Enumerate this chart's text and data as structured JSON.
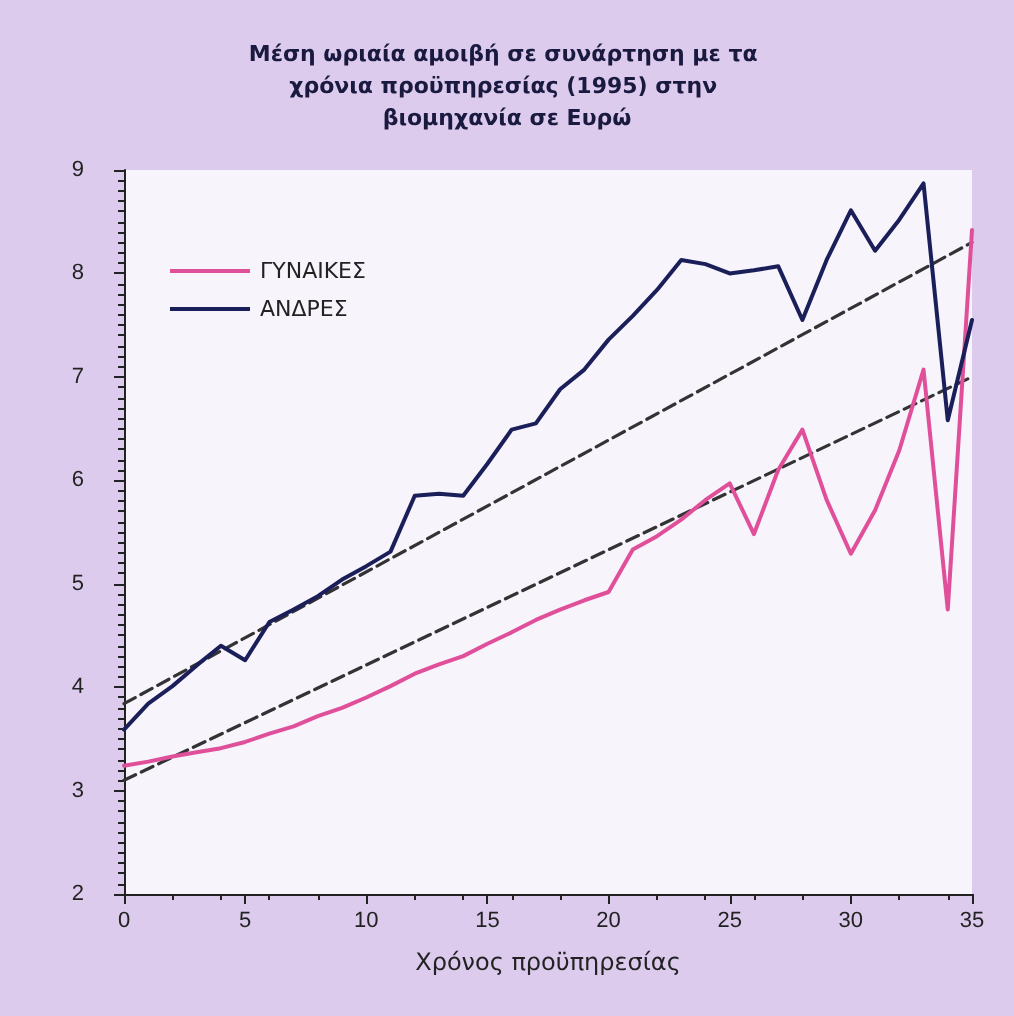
{
  "chart_data": {
    "type": "line",
    "title": "Μέση ωριαία αμοιβή σε συνάρτηση με τα χρόνια προϋπηρεσίας (1995) στην βιομηχανία σε Ευρώ",
    "xlabel": "Χρόνος προϋπηρεσίας",
    "x": [
      0,
      1,
      2,
      3,
      4,
      5,
      6,
      7,
      8,
      9,
      10,
      11,
      12,
      13,
      14,
      15,
      16,
      17,
      18,
      19,
      20,
      21,
      22,
      23,
      24,
      25,
      26,
      27,
      28,
      29,
      30,
      31,
      32,
      33,
      34,
      35
    ],
    "series": [
      {
        "name": "ΓΥΝΑΙΚΕΣ",
        "color": "#e0509a",
        "values": [
          3.24,
          3.28,
          3.33,
          3.37,
          3.41,
          3.47,
          3.55,
          3.62,
          3.72,
          3.8,
          3.9,
          4.01,
          4.13,
          4.22,
          4.3,
          4.42,
          4.53,
          4.65,
          4.75,
          4.84,
          4.92,
          5.33,
          5.46,
          5.62,
          5.81,
          5.97,
          5.48,
          6.1,
          6.49,
          5.81,
          5.29,
          5.71,
          6.29,
          7.07,
          4.75,
          8.42
        ]
      },
      {
        "name": "ΑΝΔΡΕΣ",
        "color": "#1a1f5a",
        "values": [
          3.59,
          3.84,
          4.01,
          4.21,
          4.4,
          4.26,
          4.63,
          4.75,
          4.88,
          5.04,
          5.17,
          5.31,
          5.85,
          5.87,
          5.85,
          6.16,
          6.49,
          6.55,
          6.88,
          7.07,
          7.36,
          7.59,
          7.84,
          8.13,
          8.09,
          8.0,
          8.03,
          8.07,
          7.55,
          8.13,
          8.61,
          8.22,
          8.52,
          8.87,
          6.58,
          7.55
        ]
      },
      {
        "type": "line",
        "color": "#333333",
        "line_style": "dashed",
        "values": [
          3.1,
          null,
          null,
          null,
          null,
          null,
          null,
          null,
          null,
          null,
          null,
          null,
          null,
          null,
          null,
          null,
          null,
          null,
          null,
          null,
          null,
          null,
          null,
          null,
          null,
          null,
          null,
          null,
          null,
          null,
          null,
          null,
          null,
          null,
          null,
          7.0
        ]
      },
      {
        "type": "line",
        "color": "#333333",
        "line_style": "dashed",
        "values": [
          3.84,
          null,
          null,
          null,
          null,
          null,
          null,
          null,
          null,
          null,
          null,
          null,
          null,
          null,
          null,
          null,
          null,
          null,
          null,
          null,
          null,
          null,
          null,
          null,
          null,
          null,
          null,
          null,
          null,
          null,
          null,
          null,
          null,
          null,
          null,
          8.3
        ]
      }
    ],
    "xlim": [
      0,
      35
    ],
    "xticks": [
      0,
      5,
      10,
      15,
      20,
      25,
      30,
      35
    ],
    "ylim": [
      2,
      9
    ],
    "yticks": [
      2,
      3,
      4,
      5,
      6,
      7,
      8,
      9
    ],
    "grid": false,
    "legend": "top left",
    "marker": "none",
    "line_style": "solid"
  }
}
